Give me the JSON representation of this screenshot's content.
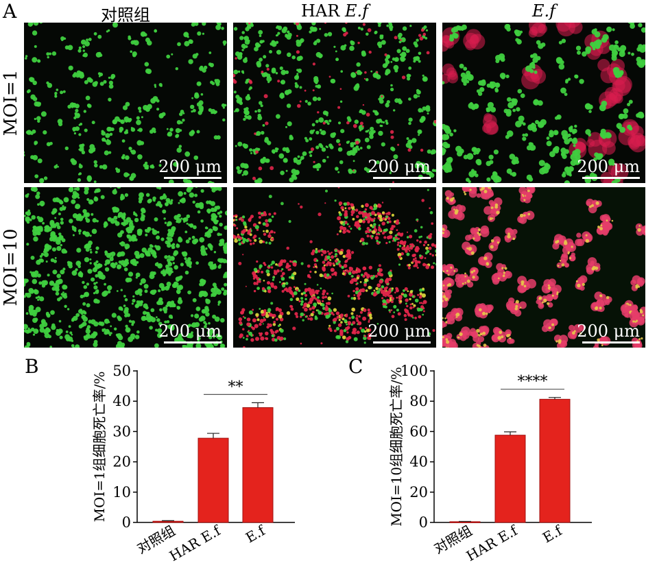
{
  "panel_labels": {
    "a": "A",
    "b": "B",
    "c": "C"
  },
  "columns": [
    "对照组",
    "HAR ",
    "E.f",
    "E.f"
  ],
  "column_italic_part": "E.f",
  "rows": [
    "MOI=1",
    "MOI=10"
  ],
  "scale_bar_label": "200 μm",
  "colors": {
    "live_cells": "#3fcf3f",
    "dead_cells": "#e0264a",
    "bar_fill": "#e4231d",
    "bar_edge": "#a01010"
  },
  "chart_data": [
    {
      "type": "bar",
      "panel": "B",
      "categories": [
        "对照组",
        "HAR E.f",
        "E.f"
      ],
      "values": [
        0.4,
        27.8,
        37.9
      ],
      "errors": [
        0.2,
        1.6,
        1.6
      ],
      "ylabel": "MOI=1组细胞死亡率/%",
      "ylim": [
        0,
        50
      ],
      "yticks": [
        0,
        10,
        20,
        30,
        40,
        50
      ],
      "significance": {
        "between": [
          1,
          2
        ],
        "label": "**"
      }
    },
    {
      "type": "bar",
      "panel": "C",
      "categories": [
        "对照组",
        "HAR E.f",
        "E.f"
      ],
      "values": [
        0.5,
        57.6,
        81.3
      ],
      "errors": [
        0.2,
        2.2,
        1.2
      ],
      "ylabel": "MOI=10组细胞死亡率/%",
      "ylim": [
        0,
        100
      ],
      "yticks": [
        0,
        20,
        40,
        60,
        80,
        100
      ],
      "significance": {
        "between": [
          1,
          2
        ],
        "label": "****"
      }
    }
  ]
}
